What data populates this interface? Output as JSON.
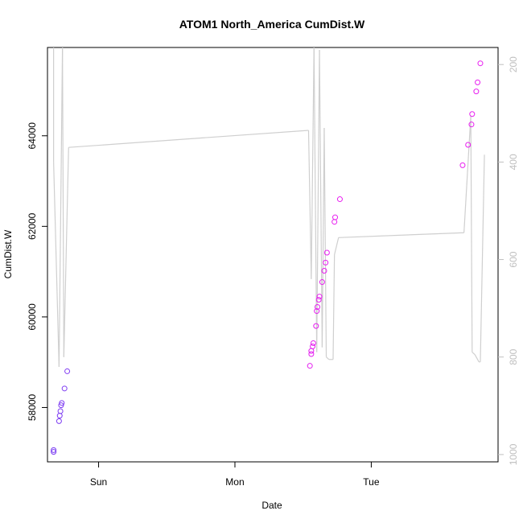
{
  "chart_data": {
    "type": "scatter",
    "title": "ATOM1 North_America CumDist.W",
    "xlabel": "Date",
    "ylabel": "CumDist.W",
    "xlim": [
      -0.375,
      2.93
    ],
    "ylim": [
      56800,
      65950
    ],
    "x_ticks": [
      {
        "value": 0,
        "label": "Sun"
      },
      {
        "value": 1,
        "label": "Mon"
      },
      {
        "value": 2,
        "label": "Tue"
      }
    ],
    "y_ticks": [
      58000,
      60000,
      62000,
      64000
    ],
    "secondary_axis": {
      "side": "right",
      "ylim": [
        1015,
        165
      ],
      "ticks": [
        200,
        400,
        600,
        800,
        1000
      ],
      "color": "#bfbfbf"
    },
    "grid": false,
    "legend": "none",
    "colors": {
      "points_early": "#7a3cf2",
      "points_late": "#e81ef0",
      "line": "#cfcfcf",
      "axis": "#000000"
    },
    "series": [
      {
        "type": "scatter",
        "points": [
          {
            "x": -0.33,
            "y": 57060
          },
          {
            "x": -0.33,
            "y": 57020
          },
          {
            "x": -0.29,
            "y": 57700
          },
          {
            "x": -0.285,
            "y": 57820
          },
          {
            "x": -0.28,
            "y": 57920
          },
          {
            "x": -0.275,
            "y": 58050
          },
          {
            "x": -0.27,
            "y": 58100
          },
          {
            "x": -0.25,
            "y": 58420
          },
          {
            "x": -0.23,
            "y": 58800
          },
          {
            "x": 1.55,
            "y": 58920
          },
          {
            "x": 1.56,
            "y": 59180
          },
          {
            "x": 1.56,
            "y": 59250
          },
          {
            "x": 1.57,
            "y": 59350
          },
          {
            "x": 1.575,
            "y": 59420
          },
          {
            "x": 1.595,
            "y": 59800
          },
          {
            "x": 1.6,
            "y": 60130
          },
          {
            "x": 1.605,
            "y": 60220
          },
          {
            "x": 1.615,
            "y": 60380
          },
          {
            "x": 1.62,
            "y": 60450
          },
          {
            "x": 1.64,
            "y": 60770
          },
          {
            "x": 1.655,
            "y": 61020
          },
          {
            "x": 1.665,
            "y": 61200
          },
          {
            "x": 1.675,
            "y": 61420
          },
          {
            "x": 1.73,
            "y": 62100
          },
          {
            "x": 1.735,
            "y": 62200
          },
          {
            "x": 1.77,
            "y": 62600
          },
          {
            "x": 2.67,
            "y": 63350
          },
          {
            "x": 2.71,
            "y": 63800
          },
          {
            "x": 2.735,
            "y": 64250
          },
          {
            "x": 2.74,
            "y": 64480
          },
          {
            "x": 2.77,
            "y": 64980
          },
          {
            "x": 2.78,
            "y": 65180
          },
          {
            "x": 2.8,
            "y": 65600
          }
        ]
      },
      {
        "type": "line",
        "axis": "right",
        "points": [
          {
            "x": -0.33,
            "y": 130
          },
          {
            "x": -0.33,
            "y": 400
          },
          {
            "x": -0.29,
            "y": 820
          },
          {
            "x": -0.265,
            "y": 130
          },
          {
            "x": -0.255,
            "y": 800
          },
          {
            "x": -0.22,
            "y": 370
          },
          {
            "x": 1.54,
            "y": 335
          },
          {
            "x": 1.56,
            "y": 640
          },
          {
            "x": 1.58,
            "y": 130
          },
          {
            "x": 1.6,
            "y": 790
          },
          {
            "x": 1.62,
            "y": 170
          },
          {
            "x": 1.64,
            "y": 780
          },
          {
            "x": 1.655,
            "y": 330
          },
          {
            "x": 1.67,
            "y": 800
          },
          {
            "x": 1.69,
            "y": 805
          },
          {
            "x": 1.72,
            "y": 805
          },
          {
            "x": 1.73,
            "y": 590
          },
          {
            "x": 1.76,
            "y": 555
          },
          {
            "x": 2.68,
            "y": 545
          },
          {
            "x": 2.73,
            "y": 305
          },
          {
            "x": 2.74,
            "y": 790
          },
          {
            "x": 2.76,
            "y": 795
          },
          {
            "x": 2.79,
            "y": 810
          },
          {
            "x": 2.8,
            "y": 810
          },
          {
            "x": 2.83,
            "y": 385
          }
        ]
      }
    ]
  }
}
